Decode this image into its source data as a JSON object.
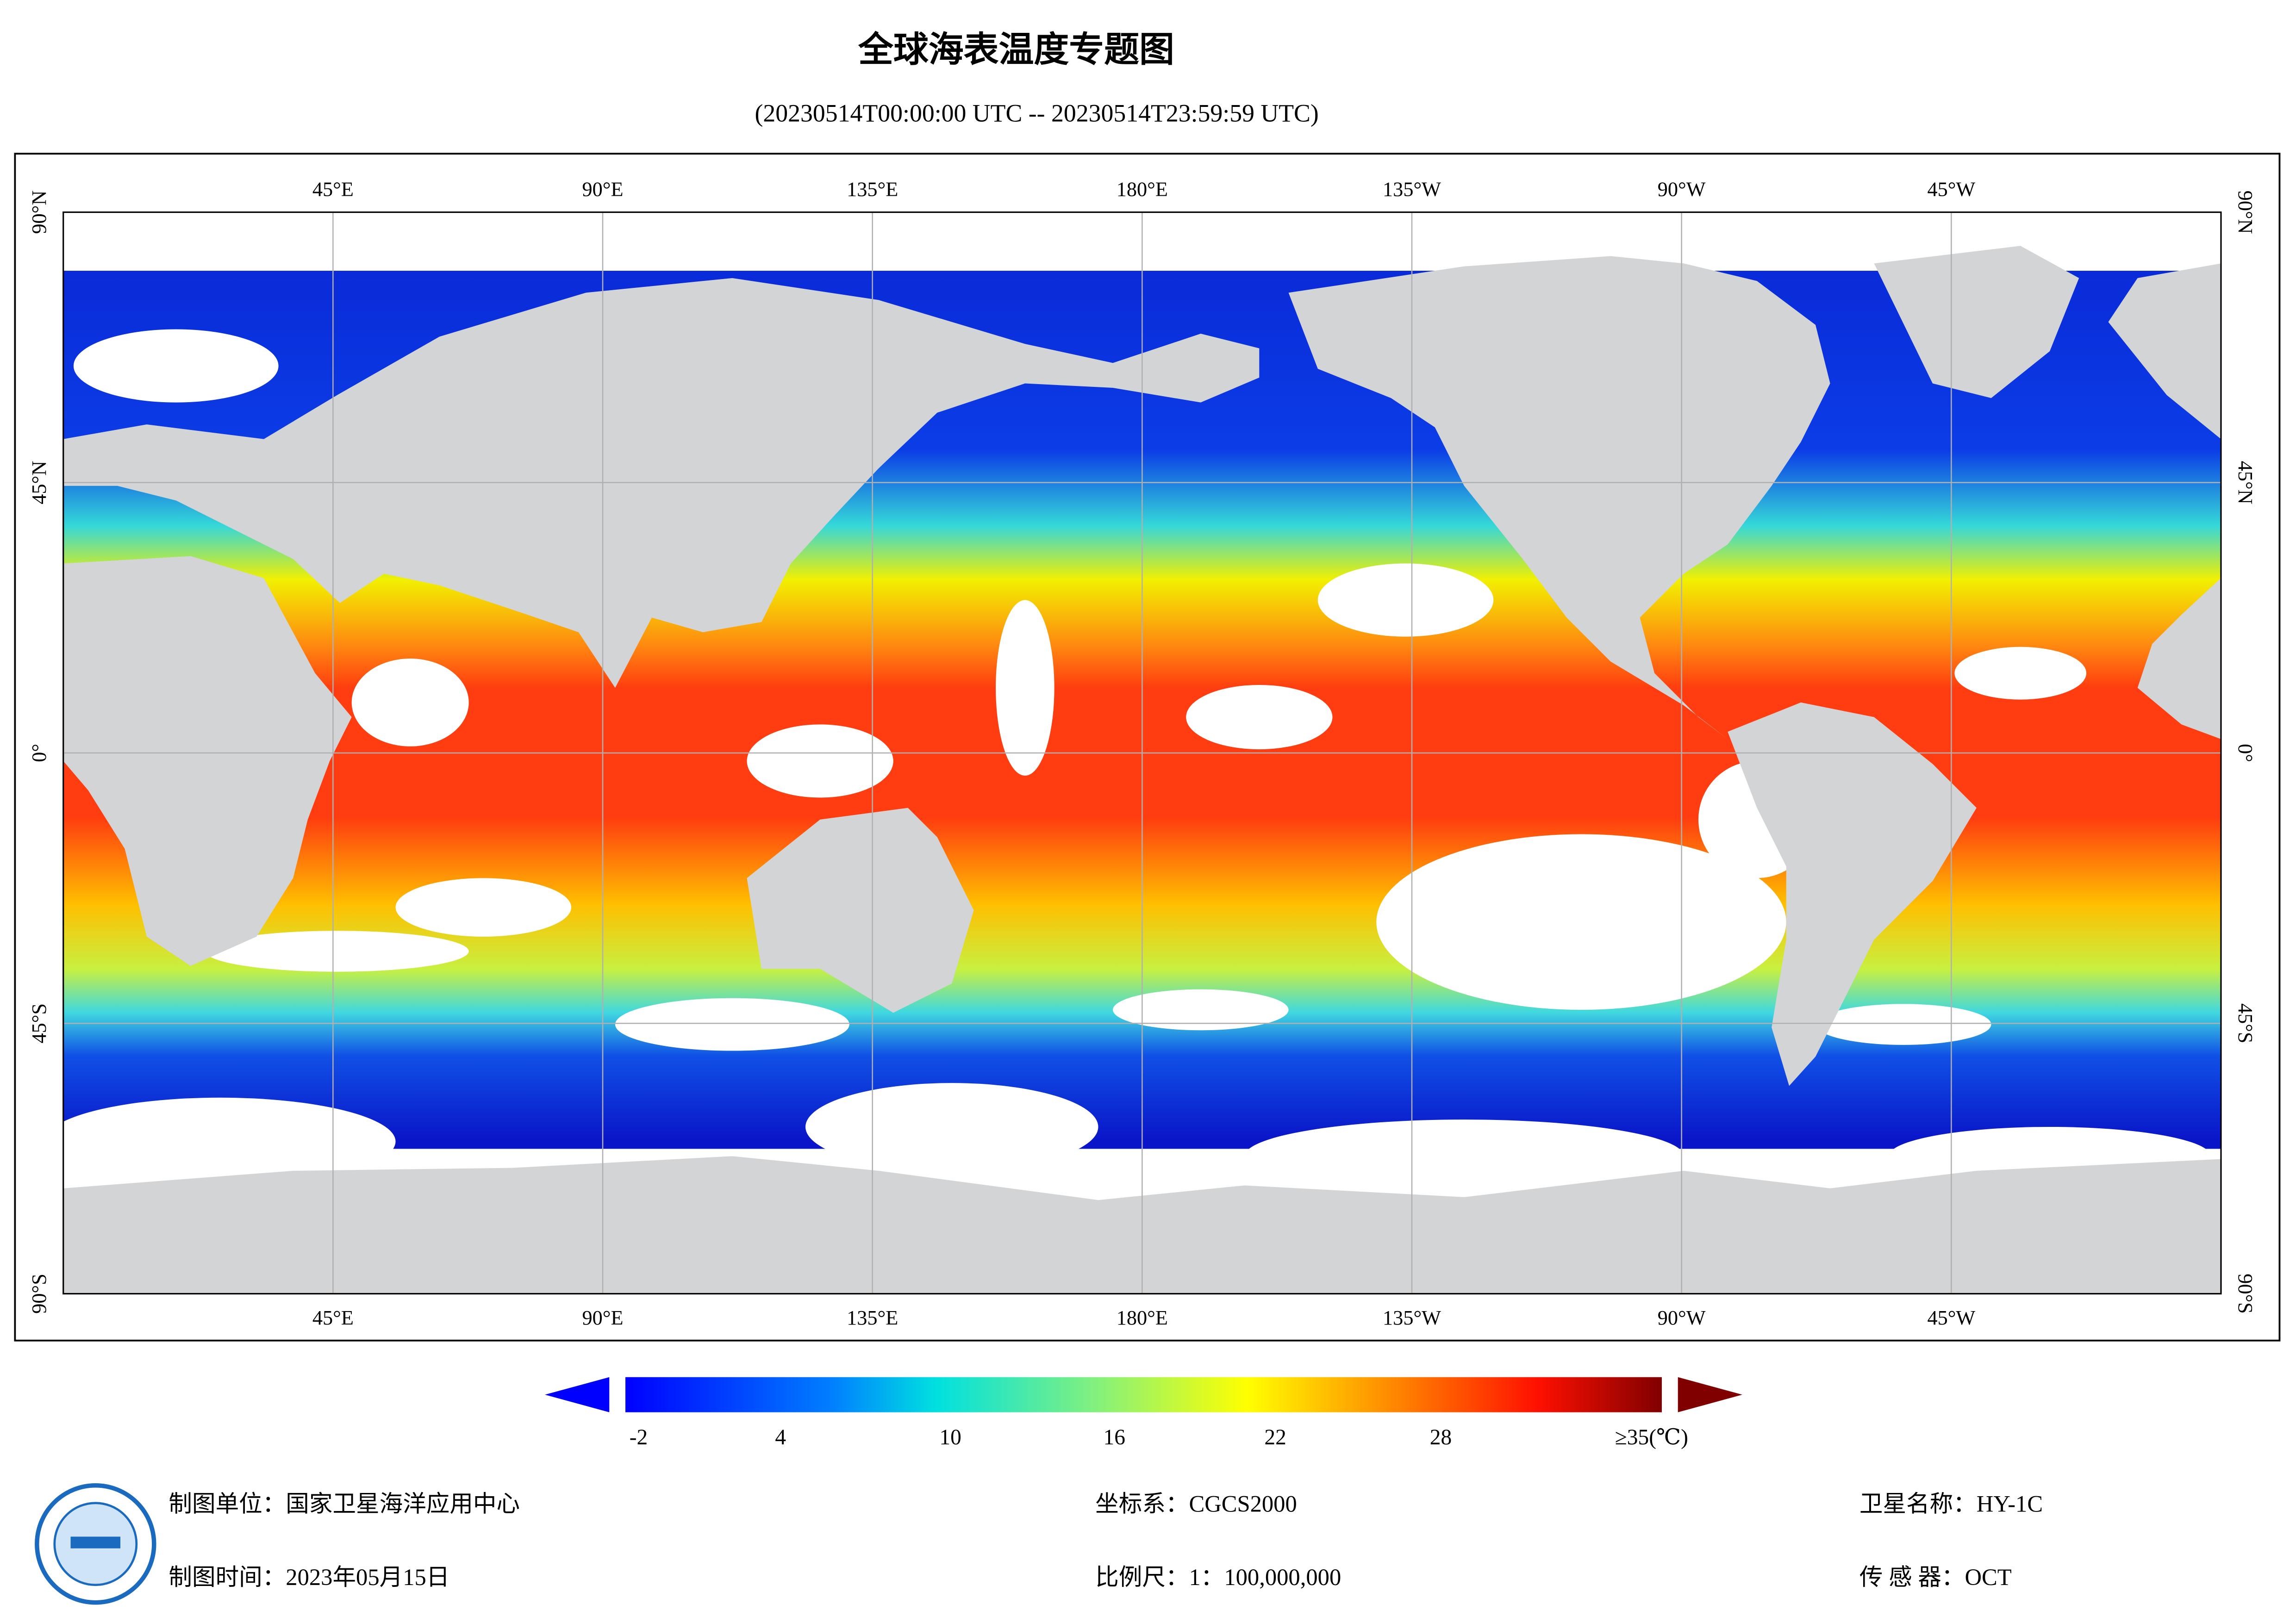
{
  "title": "全球海表温度专题图",
  "subtitle": "(20230514T00:00:00 UTC -- 20230514T23:59:59 UTC)",
  "map": {
    "lon_labels": [
      "45°E",
      "90°E",
      "135°E",
      "180°E",
      "135°W",
      "90°W",
      "45°W"
    ],
    "lat_labels": [
      "90°N",
      "45°N",
      "0°",
      "45°S",
      "90°S"
    ]
  },
  "legend": {
    "labels": [
      "-2",
      "4",
      "10",
      "16",
      "22",
      "28",
      "≥35(℃)"
    ]
  },
  "footer": {
    "unit": "制图单位：国家卫星海洋应用中心",
    "time": "制图时间：2023年05月15日",
    "crs": "坐标系：CGCS2000",
    "scale": "比例尺：1：100,000,000",
    "satellite": "卫星名称：HY-1C",
    "sensor": "传 感 器：OCT"
  }
}
